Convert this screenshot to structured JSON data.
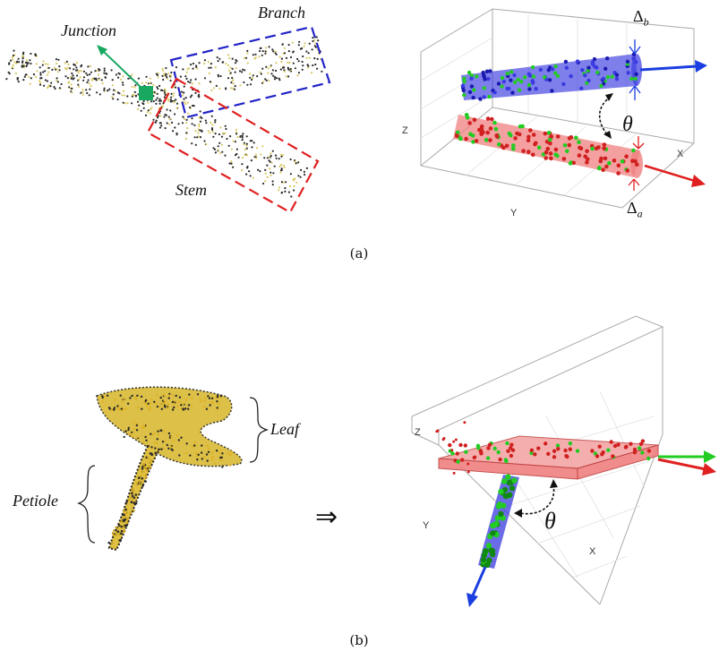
{
  "panel_a": {
    "caption": "(a)",
    "left": {
      "junction_label": "Junction",
      "branch_label": "Branch",
      "stem_label": "Stem"
    },
    "right": {
      "axis_z": "Z",
      "axis_y": "Y",
      "axis_x": "X",
      "theta": "θ",
      "delta_b": "Δb",
      "delta_a": "Δa"
    }
  },
  "panel_b": {
    "caption": "(b)",
    "left": {
      "leaf_label": "Leaf",
      "petiole_label": "Petiole",
      "arrow": "⇒"
    },
    "right": {
      "axis_z": "Z",
      "axis_y": "Y",
      "axis_x": "X",
      "theta": "θ"
    }
  },
  "colors": {
    "branch_box": "#2323c8",
    "stem_box": "#e02020",
    "junction": "#18a860",
    "blue_cyl": "#3a3ae0",
    "red_cyl": "#f08080",
    "green_pts": "#22cc22",
    "points_dark": "#2a2a2a",
    "points_yellow": "#d8c860"
  }
}
